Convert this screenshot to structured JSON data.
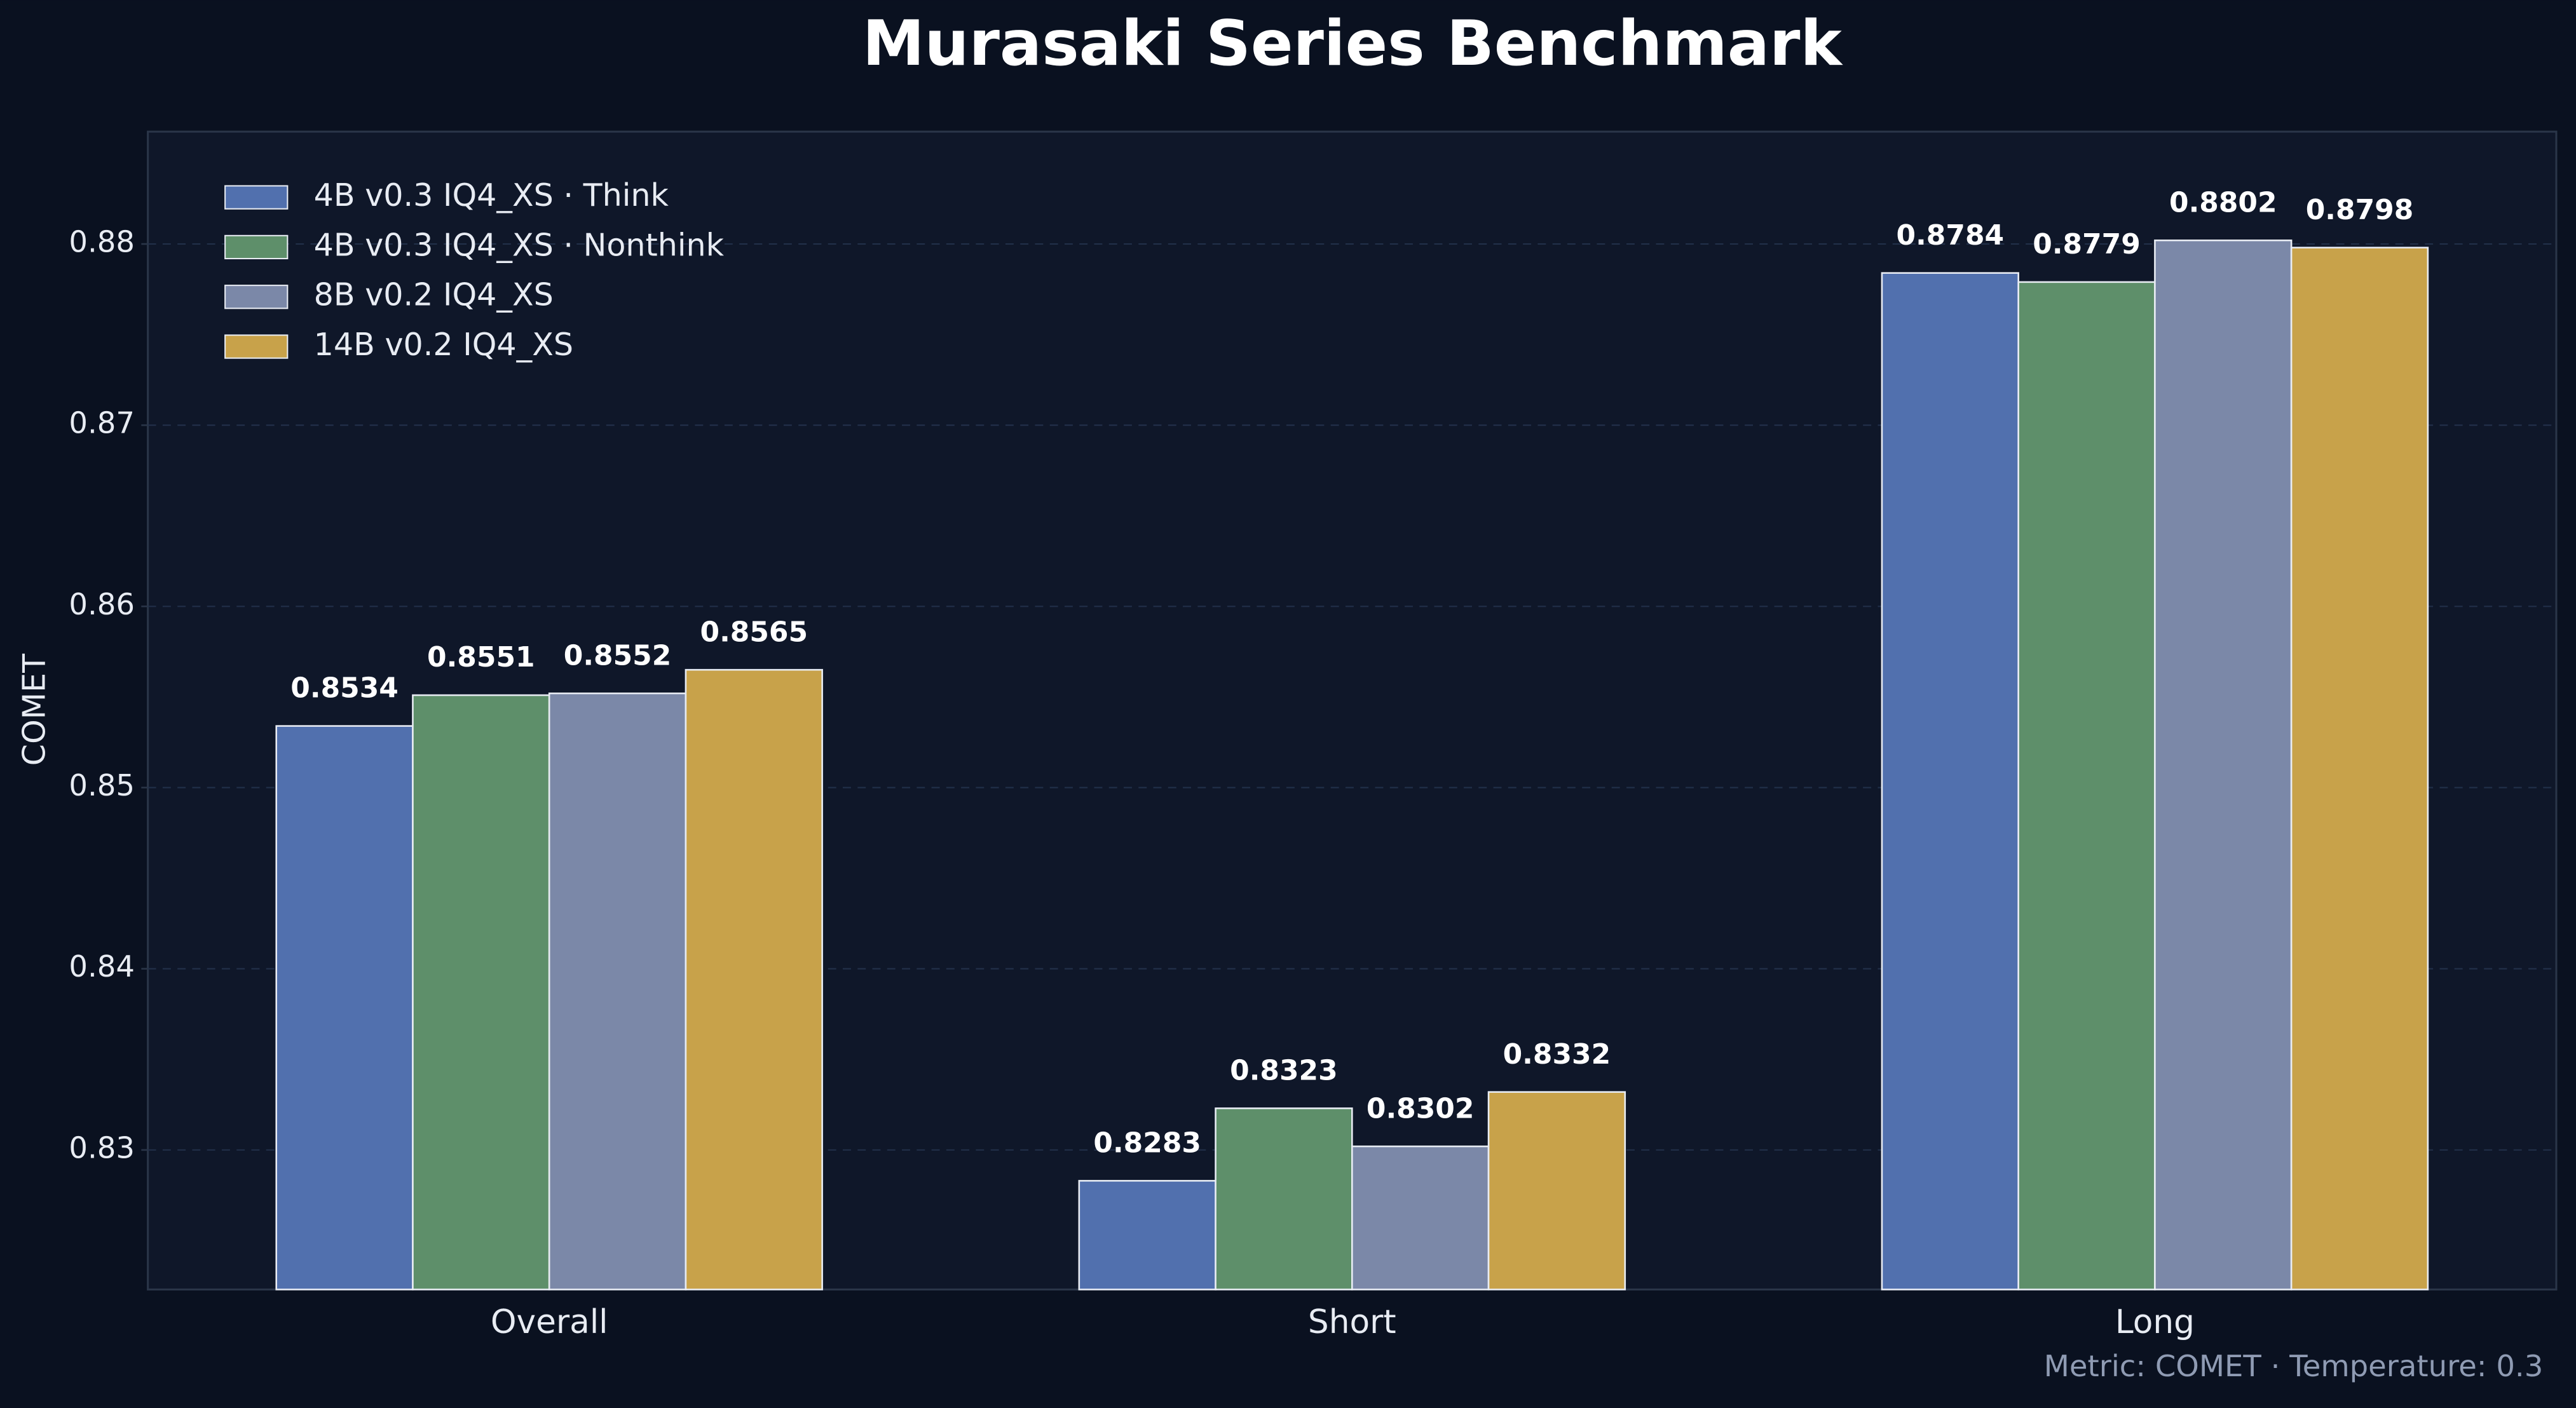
{
  "chart_data": {
    "type": "bar",
    "title": "Murasaki Series Benchmark",
    "y_label": "COMET",
    "annotation": "Metric: COMET · Temperature: 0.3",
    "categories": [
      "Overall",
      "Short",
      "Long"
    ],
    "series": [
      {
        "name": "4B v0.3 IQ4_XS · Think",
        "color": "#5170ae",
        "values": [
          0.8534,
          0.8283,
          0.8784
        ]
      },
      {
        "name": "4B v0.3 IQ4_XS · Nonthink",
        "color": "#5e8f6a",
        "values": [
          0.8551,
          0.8323,
          0.8779
        ]
      },
      {
        "name": "8B v0.2 IQ4_XS",
        "color": "#7b88a8",
        "values": [
          0.8552,
          0.8302,
          0.8802
        ]
      },
      {
        "name": "14B v0.2 IQ4_XS",
        "color": "#c8a24a",
        "values": [
          0.8565,
          0.8332,
          0.8798
        ]
      }
    ],
    "ylim": [
      0.8223,
      0.8862
    ],
    "yticks": [
      0.83,
      0.84,
      0.85,
      0.86,
      0.87,
      0.88
    ],
    "grid": true,
    "legend": "upper-left"
  }
}
